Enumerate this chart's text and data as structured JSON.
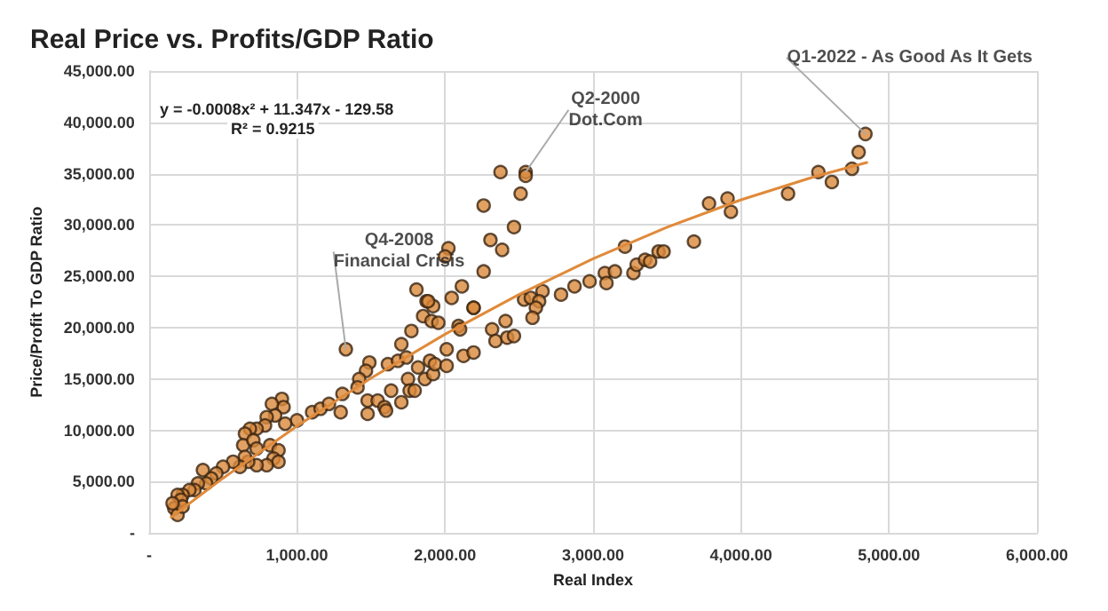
{
  "chart_data": {
    "type": "scatter",
    "title": "Real Price vs. Profits/GDP Ratio",
    "xlabel": "Real Index",
    "ylabel": "Price/Profit To GDP Ratio",
    "xlim": [
      0,
      6000
    ],
    "xticks": [
      {
        "value": 0,
        "label": "-"
      },
      {
        "value": 1000,
        "label": "1,000.00"
      },
      {
        "value": 2000,
        "label": "2,000.00"
      },
      {
        "value": 3000,
        "label": "3,000.00"
      },
      {
        "value": 4000,
        "label": "4,000.00"
      },
      {
        "value": 5000,
        "label": "5,000.00"
      },
      {
        "value": 6000,
        "label": "6,000.00"
      }
    ],
    "ylim": [
      0,
      45000
    ],
    "yticks": [
      {
        "value": 0,
        "label": "-"
      },
      {
        "value": 5000,
        "label": "5,000.00"
      },
      {
        "value": 10000,
        "label": "10,000.00"
      },
      {
        "value": 15000,
        "label": "15,000.00"
      },
      {
        "value": 20000,
        "label": "20,000.00"
      },
      {
        "value": 25000,
        "label": "25,000.00"
      },
      {
        "value": 30000,
        "label": "30,000.00"
      },
      {
        "value": 35000,
        "label": "35,000.00"
      },
      {
        "value": 40000,
        "label": "40,000.00"
      },
      {
        "value": 45000,
        "label": "45,000.00"
      }
    ],
    "grid": true,
    "marker": "circle",
    "annotations": [
      "y = -0.0008x² + 11.347x - 129.58",
      "R² = 0.9215",
      {
        "text": "Q2-2000\nDot.Com",
        "x": 2545,
        "y": 35160
      },
      {
        "text": "Q4-2008\nFinancial Crisis",
        "x": 1330,
        "y": 17900
      },
      {
        "text": "Q1-2022 - As Good As It Gets",
        "x": 4841,
        "y": 38870
      }
    ],
    "series": [
      {
        "color": "#d98a3c",
        "x": [
          2375,
          2545,
          2545,
          2511,
          2261,
          2466,
          2307,
          2386,
          2023,
          2000,
          2261,
          2114,
          1807,
          1875,
          1920,
          2045,
          2193,
          2534,
          2580,
          2659,
          2636,
          2614,
          2784,
          2875,
          2977,
          3080,
          3091,
          3148,
          3216,
          3273,
          3295,
          3352,
          3386,
          3443,
          3477,
          3682,
          3784,
          3909,
          3932,
          4318,
          4523,
          4614,
          4750,
          4795,
          4841,
          1330,
          1489,
          1466,
          1420,
          1409,
          1307,
          1295,
          1477,
          1477,
          1545,
          1591,
          1602,
          1636,
          1614,
          1682,
          1705,
          1705,
          1773,
          1739,
          1750,
          1761,
          1795,
          1818,
          1852,
          1886,
          1909,
          1955,
          1898,
          1864,
          1920,
          1932,
          2011,
          2011,
          2091,
          2102,
          2125,
          2193,
          2193,
          2318,
          2341,
          2409,
          2420,
          2466,
          2591,
          1000,
          1102,
          1159,
          1216,
          898,
          909,
          920,
          830,
          852,
          795,
          784,
          727,
          682,
          648,
          636,
          705,
          727,
          818,
          875,
          841,
          875,
          795,
          727,
          670,
          648,
          614,
          568,
          500,
          455,
          420,
          386,
          364,
          330,
          307,
          273,
          227,
          193,
          216,
          170,
          193,
          227,
          159
        ],
        "values": [
          35160,
          35160,
          34800,
          33060,
          31900,
          29800,
          28550,
          27580,
          27740,
          26940,
          25480,
          24030,
          23710,
          22580,
          22100,
          22900,
          21940,
          22740,
          22900,
          23550,
          22580,
          21940,
          23230,
          24030,
          24520,
          25320,
          24350,
          25480,
          27900,
          25320,
          26130,
          26610,
          26450,
          27420,
          27420,
          28390,
          32100,
          32580,
          31290,
          33060,
          35160,
          34190,
          35480,
          37100,
          38870,
          17900,
          16610,
          15800,
          15000,
          14190,
          13550,
          11770,
          12900,
          11610,
          12900,
          12260,
          11930,
          13870,
          16450,
          16770,
          18390,
          12740,
          19680,
          17100,
          15000,
          13870,
          13870,
          16130,
          21130,
          22580,
          20650,
          20480,
          16770,
          15000,
          15480,
          16450,
          16290,
          17900,
          20160,
          19840,
          17260,
          17580,
          21940,
          19840,
          18710,
          20650,
          19030,
          19190,
          20970,
          10970,
          11770,
          12100,
          12580,
          13060,
          12260,
          10650,
          12580,
          11450,
          11290,
          10480,
          10160,
          10160,
          9680,
          8550,
          9030,
          8230,
          8550,
          8060,
          7260,
          6940,
          6610,
          6610,
          6940,
          7420,
          6450,
          6940,
          6450,
          5810,
          5320,
          4840,
          6130,
          4840,
          4190,
          4190,
          3710,
          3710,
          3230,
          2420,
          1770,
          2580,
          2900
        ]
      },
      {
        "type": "line",
        "color": "#e08a3a",
        "marker": "none",
        "x": [
          150,
          500,
          1000,
          1500,
          2000,
          2500,
          3000,
          3500,
          4000,
          4500,
          4850
        ],
        "values": [
          1554,
          5344,
          10417,
          15091,
          19364,
          23238,
          26711,
          29785,
          32458,
          34732,
          36085
        ]
      }
    ]
  }
}
